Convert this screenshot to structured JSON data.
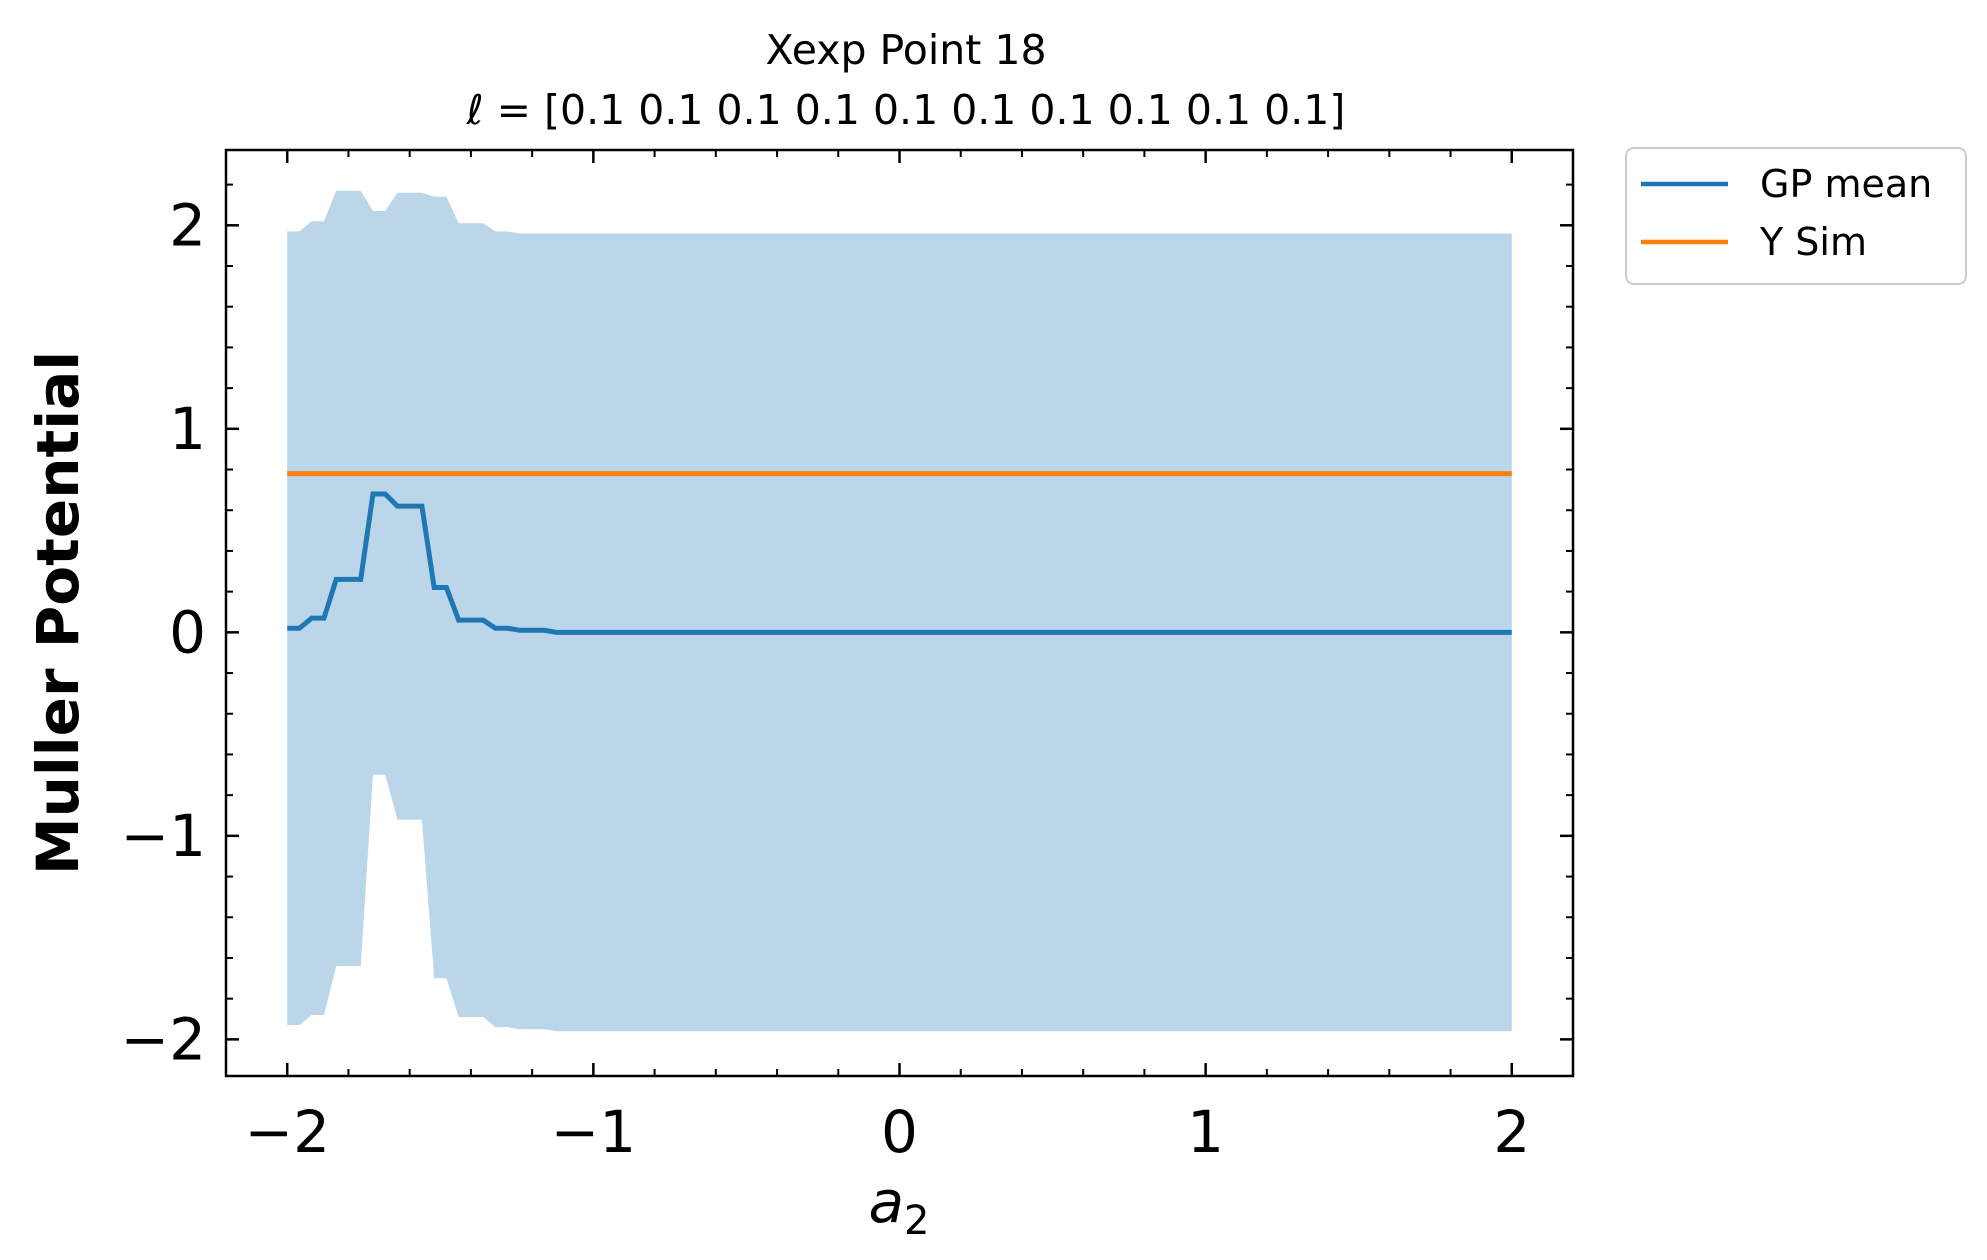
{
  "chart_data": {
    "type": "line",
    "title": "Xexp Point 18",
    "subtitle_prefix": "ℓ = ",
    "subtitle_values": "[0.1 0.1 0.1 0.1 0.1 0.1 0.1 0.1 0.1 0.1]",
    "xlabel_base": "a",
    "xlabel_sub": "2",
    "ylabel": "Muller Potential",
    "xlim": [
      -2.2,
      2.2
    ],
    "ylim": [
      -2.18,
      2.37
    ],
    "xticks": [
      -2,
      -1,
      0,
      1,
      2
    ],
    "xtick_labels": [
      "−2",
      "−1",
      "0",
      "1",
      "2"
    ],
    "yticks": [
      -2,
      -1,
      0,
      1,
      2
    ],
    "ytick_labels": [
      "−2",
      "−1",
      "0",
      "1",
      "2"
    ],
    "x_minor_step": 0.2,
    "y_minor_step": 0.2,
    "grid": false,
    "legend_position": "outside-top-right",
    "colors": {
      "gp_mean": "#1f77b4",
      "y_sim": "#ff7f0e",
      "band": "#1f77b4"
    },
    "series": [
      {
        "name": "GP mean",
        "x": [
          -2.0,
          -1.96,
          -1.92,
          -1.88,
          -1.84,
          -1.8,
          -1.76,
          -1.72,
          -1.68,
          -1.64,
          -1.6,
          -1.56,
          -1.52,
          -1.48,
          -1.44,
          -1.4,
          -1.36,
          -1.32,
          -1.28,
          -1.24,
          -1.2,
          -1.16,
          -1.12,
          2.0
        ],
        "y": [
          0.02,
          0.02,
          0.07,
          0.07,
          0.26,
          0.26,
          0.26,
          0.68,
          0.68,
          0.62,
          0.62,
          0.62,
          0.22,
          0.22,
          0.06,
          0.06,
          0.06,
          0.02,
          0.02,
          0.01,
          0.01,
          0.01,
          0.0,
          0.0
        ]
      },
      {
        "name": "Y Sim",
        "x": [
          -2.0,
          2.0
        ],
        "y": [
          0.78,
          0.78
        ]
      }
    ],
    "confidence_band": {
      "x": [
        -2.0,
        -1.96,
        -1.92,
        -1.88,
        -1.84,
        -1.8,
        -1.76,
        -1.72,
        -1.68,
        -1.64,
        -1.6,
        -1.56,
        -1.52,
        -1.48,
        -1.44,
        -1.4,
        -1.36,
        -1.32,
        -1.28,
        -1.24,
        -1.2,
        -1.16,
        -1.12,
        2.0
      ],
      "upper": [
        1.97,
        1.97,
        2.02,
        2.02,
        2.17,
        2.17,
        2.17,
        2.07,
        2.07,
        2.16,
        2.16,
        2.16,
        2.14,
        2.14,
        2.01,
        2.01,
        2.01,
        1.97,
        1.97,
        1.96,
        1.96,
        1.96,
        1.96,
        1.96
      ],
      "lower": [
        -1.93,
        -1.93,
        -1.88,
        -1.88,
        -1.64,
        -1.64,
        -1.64,
        -0.7,
        -0.7,
        -0.92,
        -0.92,
        -0.92,
        -1.7,
        -1.7,
        -1.89,
        -1.89,
        -1.89,
        -1.94,
        -1.94,
        -1.95,
        -1.95,
        -1.95,
        -1.96,
        -1.96
      ]
    }
  }
}
